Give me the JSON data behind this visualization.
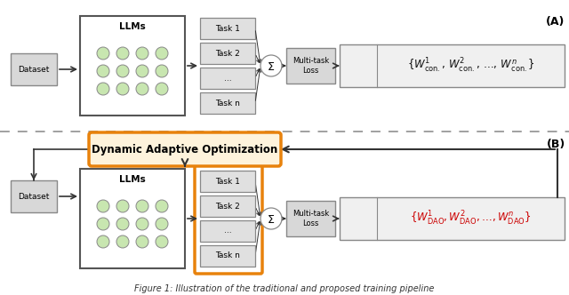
{
  "bg_color": "#ffffff",
  "fig_width": 6.4,
  "fig_height": 3.32,
  "dpi": 100,
  "section_A_label": "(A)",
  "section_B_label": "(B)",
  "dao_box_text": "Dynamic Adaptive Optimization",
  "dao_box_facecolor": "#FEF3DC",
  "dao_box_edgecolor": "#E8820C",
  "multitask_box_facecolor": "#D8D8D8",
  "multitask_box_edgecolor": "#888888",
  "formula_box_facecolor": "#F0F0F0",
  "formula_box_edgecolor": "#888888",
  "llm_box_facecolor": "#ffffff",
  "llm_box_edgecolor": "#555555",
  "task_box_facecolor": "#E0E0E0",
  "task_box_edgecolor": "#888888",
  "task_box_orange_edgecolor": "#E8820C",
  "dataset_box_facecolor": "#D8D8D8",
  "dataset_box_edgecolor": "#888888",
  "node_color": "#C8E6B0",
  "node_edge_color": "#888888",
  "arrow_color": "#333333",
  "dashed_line_color": "#999999",
  "formula_color_A": "#111111",
  "formula_color_B": "#CC0000",
  "caption": "Figure 1: Illustration of the traditional and proposed training pipeline",
  "caption_fontsize": 7.0
}
